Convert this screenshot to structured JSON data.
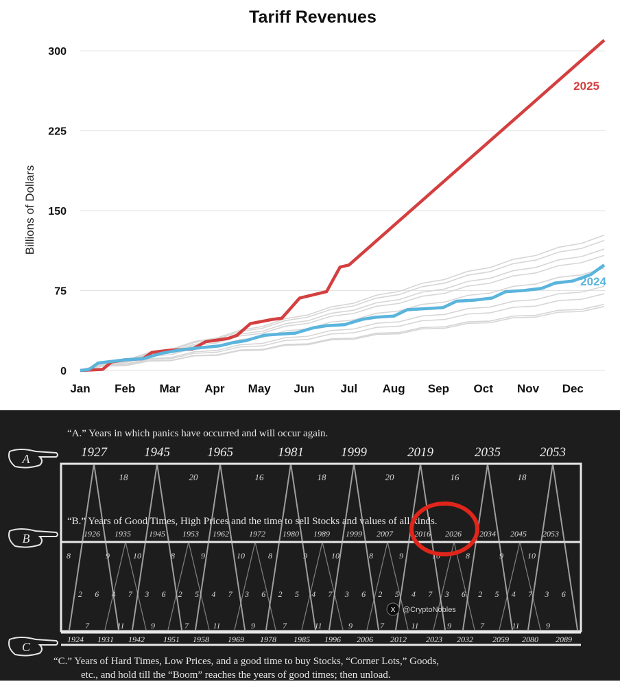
{
  "chart_data": [
    {
      "type": "line",
      "title": "Tariff Revenues",
      "xlabel": "",
      "ylabel": "Billions of Dollars",
      "ylim": [
        0,
        310
      ],
      "yticks": [
        "0",
        "75",
        "150",
        "225",
        "300"
      ],
      "yticks_values": [
        0,
        75,
        150,
        225,
        300
      ],
      "categories": [
        "Jan",
        "Feb",
        "Mar",
        "Apr",
        "May",
        "Jun",
        "Jul",
        "Aug",
        "Sep",
        "Oct",
        "Nov",
        "Dec"
      ],
      "grid": "horizontal",
      "series": [
        {
          "name": "2025",
          "color": "#d43f3f",
          "x": [
            0,
            0.5,
            0.7,
            1.0,
            1.4,
            1.6,
            2.0,
            2.5,
            2.8,
            3.3,
            3.5,
            3.8,
            4.3,
            4.5,
            4.9,
            5.3,
            5.5,
            5.8,
            6.0,
            11.7
          ],
          "values": [
            0,
            1,
            8,
            10,
            11,
            17,
            19,
            20,
            27,
            30,
            33,
            44,
            48,
            49,
            68,
            72,
            74,
            97,
            99,
            310
          ]
        },
        {
          "name": "2024",
          "color": "#5ab4dc",
          "x": [
            0,
            0.2,
            0.4,
            1.0,
            1.4,
            1.8,
            2.2,
            2.6,
            3.1,
            3.4,
            3.7,
            4.1,
            4.4,
            4.8,
            5.2,
            5.5,
            5.9,
            6.3,
            6.6,
            7.0,
            7.3,
            7.7,
            8.1,
            8.4,
            8.8,
            9.2,
            9.5,
            9.9,
            10.3,
            10.6,
            11.0,
            11.4,
            11.7
          ],
          "values": [
            0,
            1,
            7,
            10,
            11,
            16,
            19,
            21,
            23,
            26,
            28,
            33,
            34,
            35,
            40,
            42,
            43,
            48,
            50,
            51,
            57,
            58,
            59,
            65,
            66,
            68,
            74,
            75,
            77,
            82,
            84,
            90,
            99
          ]
        }
      ],
      "series_labels": [
        "2025",
        "2024"
      ],
      "background_lines_color": "#d6d6d6"
    },
    {
      "type": "table",
      "section_a_text": "“A.” Years in which panics have occurred and will occur again.",
      "section_b_text": "“B.” Years of Good Times, High Prices and the time to sell Stocks and values of all kinds.",
      "section_c_text_line1": "“C.”  Years of Hard Times, Low Prices, and a good time to buy Stocks, “Corner Lots,” Goods,",
      "section_c_text_line2": "etc., and hold till  the “Boom” reaches the years of good times; then unload.",
      "row_a_labels": [
        "A",
        "B",
        "C"
      ],
      "panic_years": [
        "1927",
        "1945",
        "1965",
        "1981",
        "1999",
        "2019",
        "2035",
        "2053"
      ],
      "panic_intervals": [
        "18",
        "20",
        "16",
        "18",
        "20",
        "16",
        "18"
      ],
      "good_years": [
        "1926",
        "1935",
        "1945",
        "1953",
        "1962",
        "1972",
        "1980",
        "1989",
        "1999",
        "2007",
        "2016",
        "2026",
        "2034",
        "2045",
        "2053"
      ],
      "hard_years": [
        "1924",
        "1931",
        "1942",
        "1951",
        "1958",
        "1969",
        "1978",
        "1985",
        "1996",
        "2006",
        "2012",
        "2023",
        "2032",
        "2059",
        "2080",
        "2089"
      ],
      "top_cycle_numbers": [
        "8",
        "9",
        "10",
        "8",
        "9",
        "10",
        "8",
        "9",
        "10",
        "8",
        "9",
        "10",
        "8",
        "9",
        "10"
      ],
      "mid_cycle_numbers": [
        "2",
        "6",
        "4",
        "7",
        "3",
        "6",
        "2",
        "5",
        "4",
        "7",
        "3",
        "6",
        "2",
        "5",
        "4",
        "7",
        "3",
        "6",
        "2",
        "5",
        "4",
        "7",
        "3",
        "6",
        "2",
        "5",
        "4",
        "7",
        "3",
        "6"
      ],
      "bottom_cycle_numbers": [
        "7",
        "11",
        "9",
        "7",
        "11",
        "9",
        "7",
        "11",
        "9",
        "7",
        "11",
        "9",
        "7",
        "11",
        "9"
      ],
      "watermark": "@CryptoNobles",
      "highlight_color": "#e0251b"
    }
  ]
}
